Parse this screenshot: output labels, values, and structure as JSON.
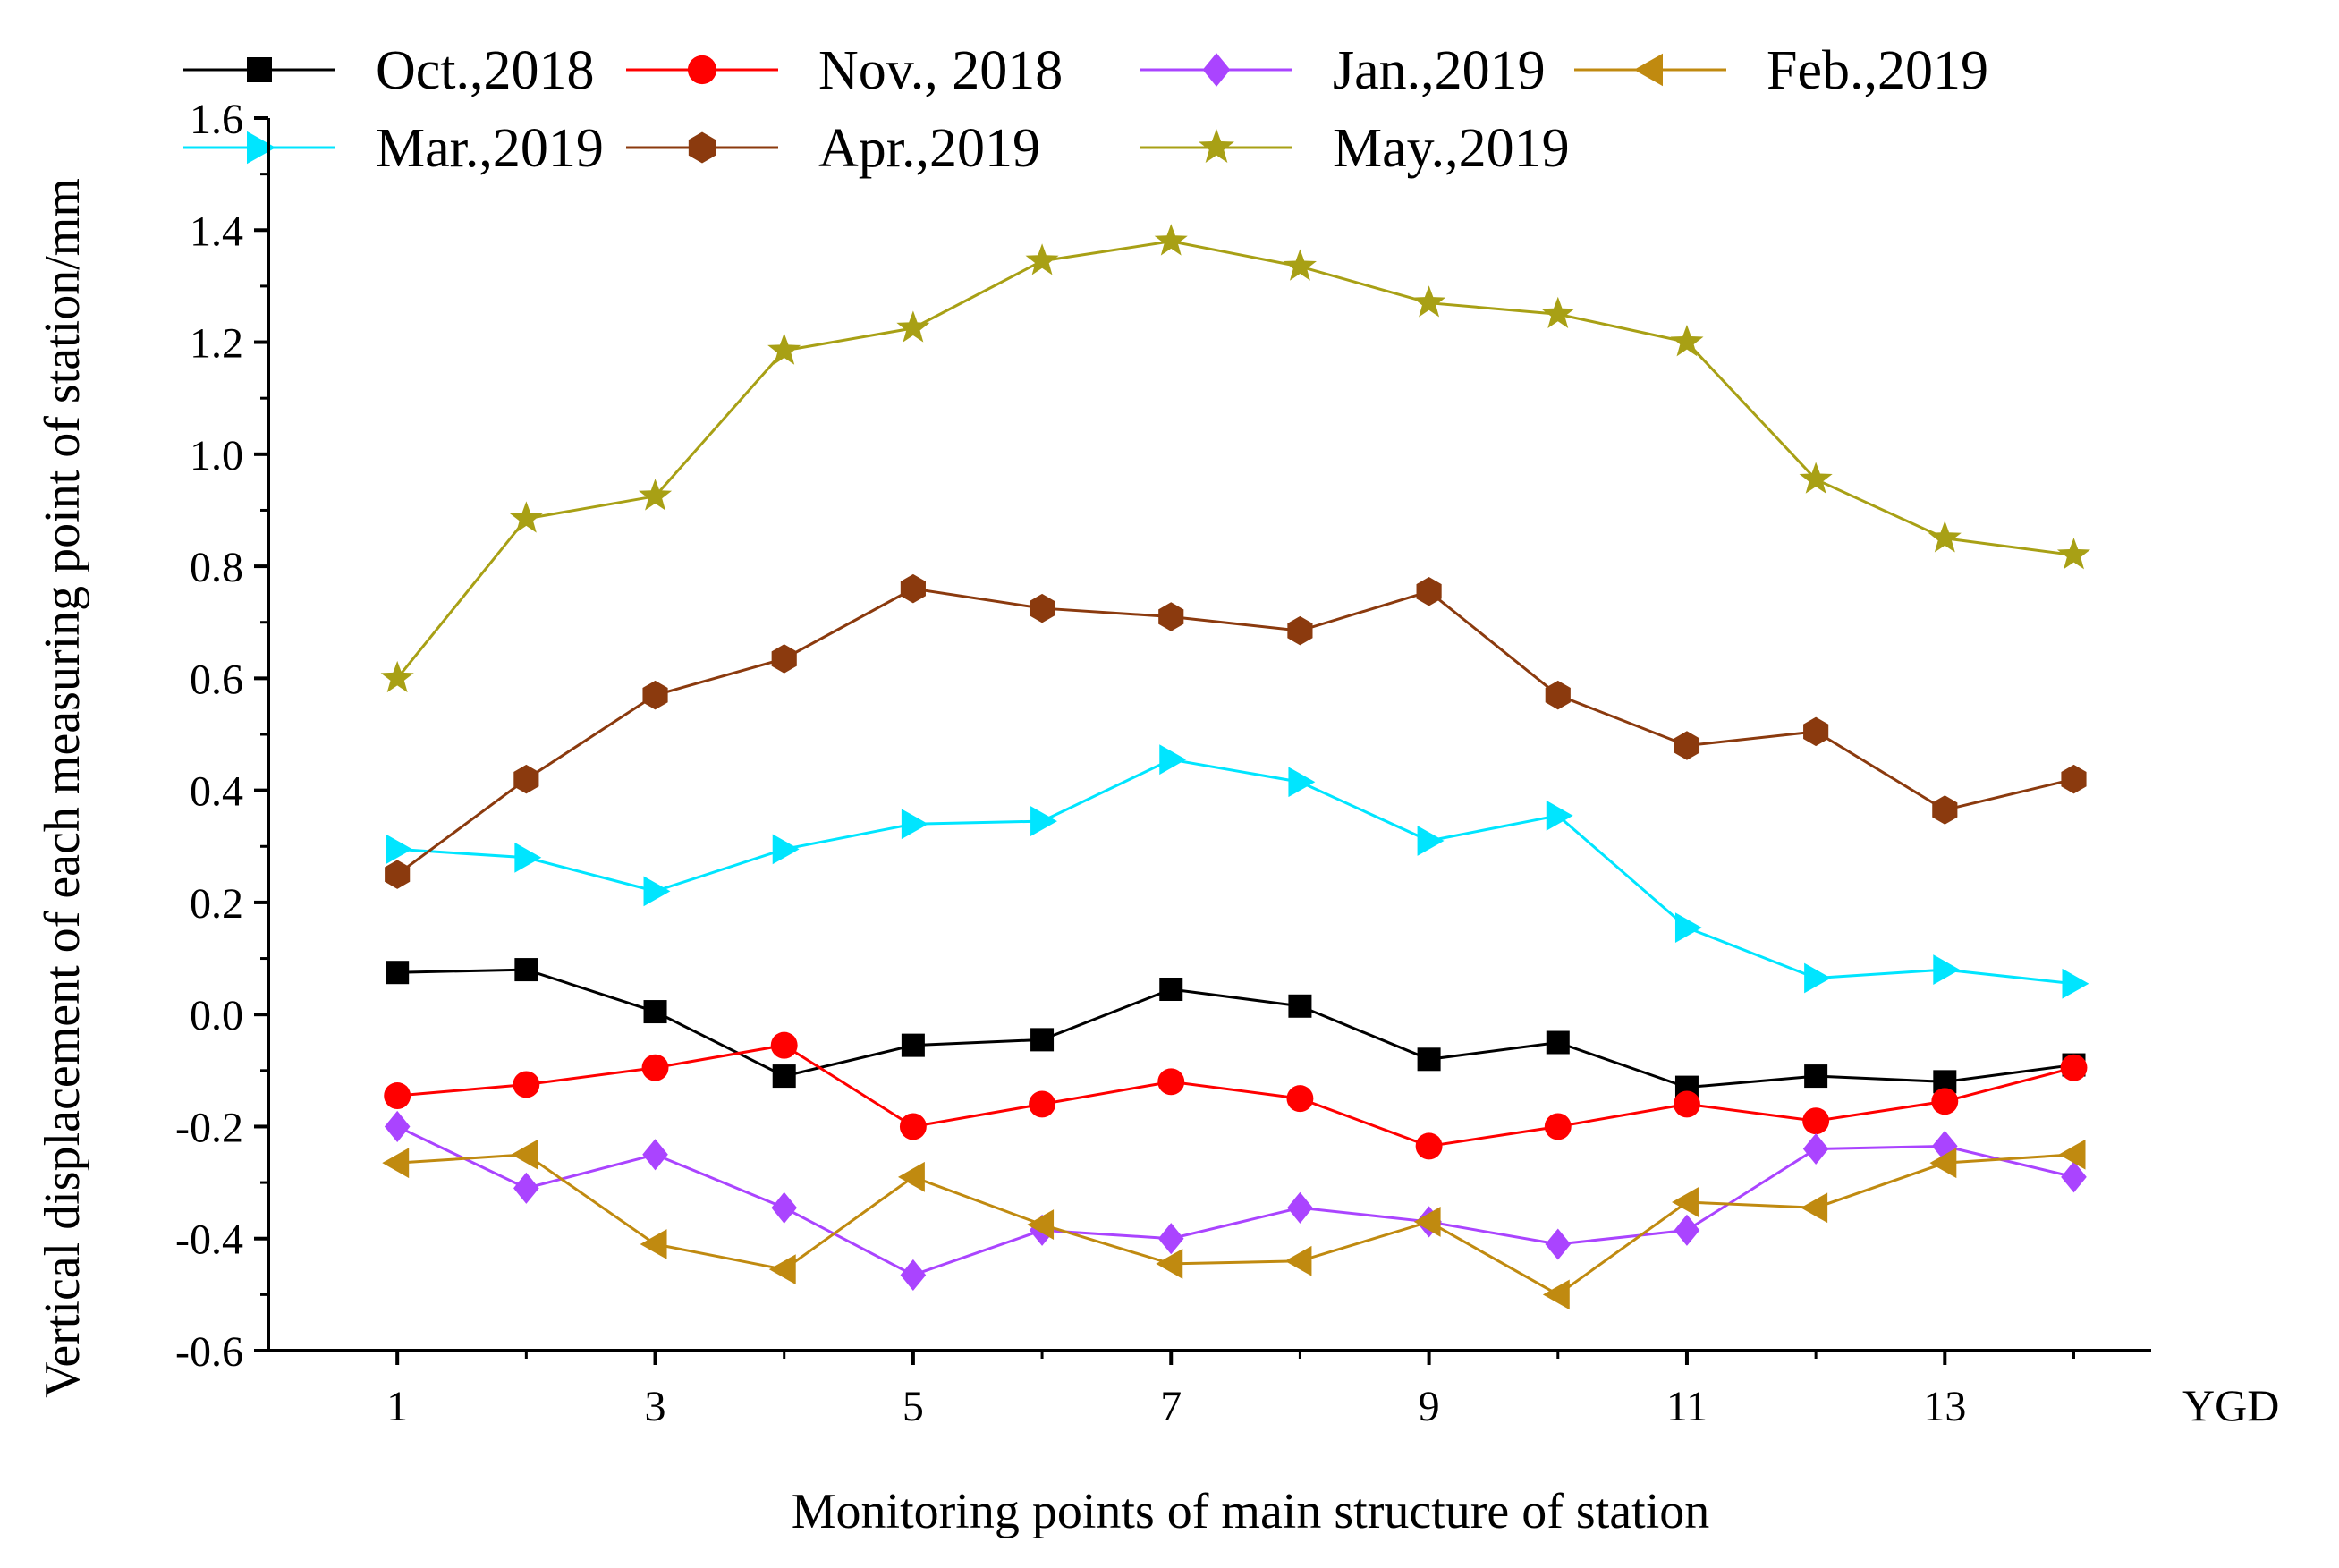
{
  "chart_data": {
    "type": "line",
    "title": "",
    "xlabel": "Monitoring points of main structure of station",
    "ylabel": "Vertical displacement of each measuring point of station/mm",
    "x_unit_label": "YGD",
    "xlim": [
      0,
      14.6
    ],
    "ylim": [
      -0.6,
      1.6
    ],
    "x_ticks": [
      1,
      3,
      5,
      7,
      9,
      11,
      13
    ],
    "y_ticks": [
      -0.6,
      -0.4,
      -0.2,
      0.0,
      0.2,
      0.4,
      0.6,
      0.8,
      1.0,
      1.2,
      1.4,
      1.6
    ],
    "y_tick_labels": [
      "-0.6",
      "-0.4",
      "-0.2",
      "0.0",
      "0.2",
      "0.4",
      "0.6",
      "0.8",
      "1.0",
      "1.2",
      "1.4",
      "1.6"
    ],
    "x_tick_labels": [
      "1",
      "3",
      "5",
      "7",
      "9",
      "11",
      "13"
    ],
    "grid": false,
    "legend_position": "top",
    "x": [
      1,
      2,
      3,
      4,
      5,
      6,
      7,
      8,
      9,
      10,
      11,
      12,
      13,
      14
    ],
    "series": [
      {
        "name": "Oct.,2018",
        "color": "#000000",
        "marker": "square",
        "values": [
          0.075,
          0.08,
          0.005,
          -0.11,
          -0.055,
          -0.045,
          0.045,
          0.015,
          -0.08,
          -0.05,
          -0.13,
          -0.11,
          -0.12,
          -0.09
        ]
      },
      {
        "name": "Nov.,  2018",
        "color": "#ff0000",
        "marker": "circle",
        "values": [
          -0.145,
          -0.125,
          -0.095,
          -0.055,
          -0.2,
          -0.16,
          -0.12,
          -0.15,
          -0.235,
          -0.2,
          -0.16,
          -0.19,
          -0.155,
          -0.095
        ]
      },
      {
        "name": "Jan.,2019",
        "color": "#aa44ff",
        "marker": "diamond",
        "values": [
          -0.2,
          -0.31,
          -0.25,
          -0.345,
          -0.465,
          -0.385,
          -0.4,
          -0.345,
          -0.37,
          -0.41,
          -0.385,
          -0.24,
          -0.235,
          -0.29
        ]
      },
      {
        "name": "Feb.,2019",
        "color": "#c08a10",
        "marker": "triangle-left",
        "values": [
          -0.265,
          -0.25,
          -0.41,
          -0.455,
          -0.29,
          -0.375,
          -0.445,
          -0.44,
          -0.37,
          -0.5,
          -0.335,
          -0.345,
          -0.265,
          -0.25
        ]
      },
      {
        "name": "Mar.,2019",
        "color": "#00e5ff",
        "marker": "triangle-right",
        "values": [
          0.295,
          0.28,
          0.22,
          0.295,
          0.34,
          0.345,
          0.455,
          0.415,
          0.31,
          0.355,
          0.155,
          0.065,
          0.08,
          0.055
        ]
      },
      {
        "name": "Apr.,2019",
        "color": "#8b3a0e",
        "marker": "hexagon",
        "values": [
          0.25,
          0.42,
          0.57,
          0.635,
          0.76,
          0.725,
          0.71,
          0.685,
          0.755,
          0.57,
          0.48,
          0.505,
          0.365,
          0.42
        ]
      },
      {
        "name": "May.,2019",
        "color": "#a8a015",
        "marker": "star",
        "values": [
          0.6,
          0.885,
          0.925,
          1.185,
          1.225,
          1.345,
          1.38,
          1.335,
          1.27,
          1.25,
          1.2,
          0.955,
          0.85,
          0.82
        ]
      }
    ]
  }
}
